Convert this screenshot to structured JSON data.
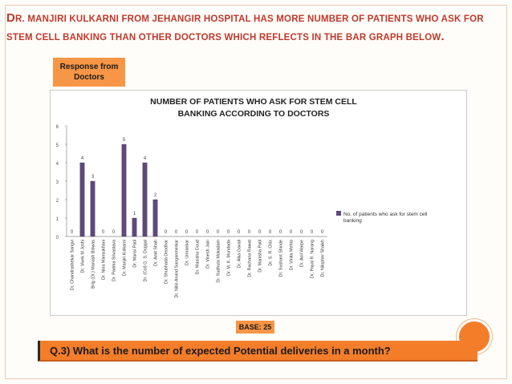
{
  "heading": {
    "initial": "D",
    "rest": "R. MANJIRI KULKARNI FROM JEHANGIR HOSPITAL HAS MORE NUMBER OF PATIENTS WHO ASK FOR STEM CELL BANKING THAN OTHER DOCTORS WHICH REFLECTS IN THE BAR GRAPH BELOW",
    "end": "."
  },
  "response_label": "Response from Doctors",
  "base_label": "BASE: 25",
  "question": "Q.3) What is the number of expected  Potential deliveries in a month?",
  "colors": {
    "accent": "#f79646",
    "heading": "#c0392b",
    "bar": "#5f497a"
  },
  "chart_data": {
    "type": "bar",
    "title_lines": [
      "NUMBER OF PATIENTS WHO ASK FOR STEM CELL",
      "BANKING ACCORDING TO DOCTORS"
    ],
    "categories": [
      "Dr. Chandrashekar Sangvi",
      "Dr. Vivek M Joshi",
      "Brig (Dr.) Manash Biswas",
      "Dr. Nina Mansukhani",
      "Dr. Padma Srivastava",
      "Dr. Manjiri Kulkarni",
      "Dr. Mansi Patil",
      "Dr. (Col) G. S. Duggal",
      "Dr. Amit Shah",
      "Dr. Shubhada Deodhar",
      "Dr. Nitin Arvind Sanganmerkar",
      "Dr. Umrankar",
      "Dr. Manisha Goud",
      "Dr. Vinesh Jain",
      "Dr. Sudhuta Mokadam",
      "Dr. M. K. Mundada",
      "Dr. Alka Gavali",
      "Dr. Rachana Rawat",
      "Dr. Manisha Patil",
      "Dr. S. R. Chix",
      "Dr. Sushant Shinde",
      "Dr. Vinita Mehta",
      "Dr. Anil Warpe",
      "Dr. Payal R. Narang",
      "Dr. Nilopher Shaikh"
    ],
    "values": [
      0,
      4,
      3,
      0,
      0,
      5,
      1,
      4,
      2,
      0,
      0,
      0,
      0,
      0,
      0,
      0,
      0,
      0,
      0,
      0,
      0,
      0,
      0,
      0,
      0
    ],
    "ylim": [
      0,
      6
    ],
    "yticks": [
      0,
      1,
      2,
      3,
      4,
      5,
      6
    ],
    "legend": "No. of patients who ask for stem cell banking",
    "legend_position": "right"
  }
}
